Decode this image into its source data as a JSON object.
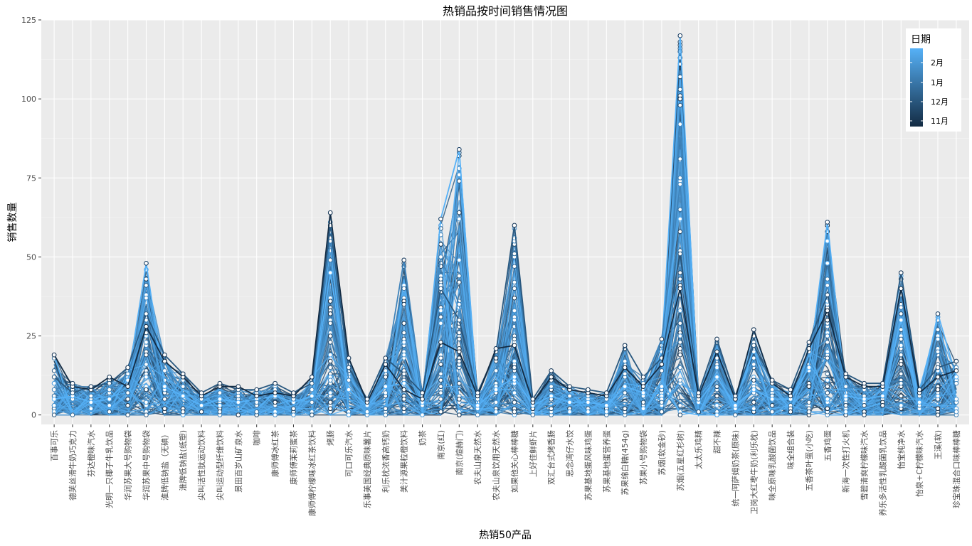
{
  "chart_data": {
    "type": "line",
    "title": "热销品按时间销售情况图",
    "xlabel": "热销50产品",
    "ylabel": "销售数量",
    "ylim": [
      -3,
      125
    ],
    "yticks": [
      0,
      25,
      50,
      75,
      100,
      125
    ],
    "grid": true,
    "legend": {
      "title": "日期",
      "placement": "top-right",
      "labels": [
        "2月",
        "1月",
        "12月",
        "11月"
      ],
      "color_low": "#132B43",
      "color_high": "#56B1F7"
    },
    "categories": [
      "百事可乐",
      "德芙丝滑牛奶巧克力",
      "芬达橙味汽水",
      "光明一只椰子牛乳饮品",
      "华润苏果大号购物袋",
      "华润苏果中号购物袋",
      "淮牌低钠盐（无碘）",
      "淮牌低钠盐(纸塑)",
      "尖叫活性肽运动饮料",
      "尖叫运动型纤维饮料",
      "景田百岁山矿泉水",
      "咖啡",
      "康师傅冰红茶",
      "康师傅茉莉蜜茶",
      "康师傅柠檬味冰红茶饮料",
      "烤肠",
      "可口可乐汽水",
      "乐事美国经典原味薯片",
      "利乐枕浓香高钙奶",
      "美汁源果粒橙饮料",
      "奶茶",
      "南京(红)",
      "南京(煊赫门)",
      "农夫山泉天然水",
      "农夫山泉饮用天然水",
      "如果他关心棒棒糖",
      "上好佳鲜虾片",
      "双汇台式烤香肠",
      "思念湾仔水饺",
      "苏果基地蛋风味鸡蛋",
      "苏果基地蛋营养蛋",
      "苏果绵白糖(454g)",
      "苏果小号购物袋",
      "苏烟(软金砂)",
      "苏烟(五星红杉树)",
      "太太乐鸡精",
      "甜不辣",
      "统一阿萨姆奶茶(原味)",
      "卫岗大红枣牛奶(利乐枕)",
      "味全原味乳酸菌饮品",
      "味全组合装",
      "五香茶叶蛋(小吃)",
      "五香鸡蛋",
      "新海一次性打火机",
      "雪碧清爽柠檬味汽水",
      "养乐多活性乳酸菌乳饮品",
      "怡宝纯净水",
      "怡泉+C柠檬味汽水",
      "王溪(软)",
      "珍宝珠混合口味棒棒糖"
    ],
    "peaks": [
      19,
      10,
      9,
      12,
      15,
      48,
      19,
      13,
      7,
      10,
      9,
      8,
      10,
      7,
      12,
      64,
      18,
      5,
      18,
      49,
      7,
      62,
      84,
      7,
      21,
      60,
      5,
      14,
      9,
      8,
      7,
      22,
      12,
      24,
      120,
      7,
      24,
      6,
      27,
      11,
      8,
      23,
      61,
      13,
      10,
      10,
      45,
      8,
      32,
      17
    ],
    "series": [
      {
        "name": "2月",
        "values": [
          5,
          6,
          4,
          5,
          11,
          48,
          9,
          6,
          3,
          5,
          4,
          5,
          6,
          4,
          6,
          45,
          8,
          3,
          9,
          10,
          4,
          62,
          84,
          3,
          8,
          12,
          3,
          6,
          4,
          4,
          3,
          9,
          7,
          20,
          120,
          4,
          12,
          3,
          8,
          5,
          5,
          15,
          61,
          6,
          5,
          6,
          30,
          4,
          32,
          12
        ]
      },
      {
        "name": "1月",
        "values": [
          8,
          10,
          6,
          8,
          13,
          30,
          14,
          9,
          5,
          7,
          6,
          4,
          8,
          5,
          8,
          55,
          11,
          4,
          14,
          49,
          6,
          50,
          35,
          5,
          14,
          30,
          4,
          9,
          6,
          6,
          5,
          17,
          10,
          24,
          73,
          5,
          18,
          5,
          16,
          8,
          7,
          20,
          41,
          9,
          8,
          8,
          38,
          6,
          20,
          15
        ]
      },
      {
        "name": "12月",
        "values": [
          12,
          7,
          9,
          10,
          15,
          32,
          19,
          13,
          7,
          10,
          8,
          8,
          10,
          7,
          10,
          60,
          15,
          5,
          18,
          13,
          7,
          40,
          30,
          7,
          20,
          60,
          5,
          14,
          9,
          8,
          7,
          22,
          12,
          18,
          51,
          7,
          24,
          6,
          22,
          11,
          8,
          23,
          38,
          13,
          10,
          10,
          45,
          8,
          15,
          17
        ]
      },
      {
        "name": "11月",
        "values": [
          19,
          9,
          8,
          12,
          9,
          28,
          17,
          12,
          6,
          9,
          9,
          6,
          7,
          6,
          12,
          64,
          18,
          4,
          16,
          8,
          5,
          23,
          20,
          6,
          21,
          22,
          4,
          12,
          8,
          7,
          6,
          15,
          9,
          16,
          40,
          6,
          20,
          5,
          27,
          10,
          6,
          21,
          33,
          12,
          9,
          9,
          40,
          7,
          12,
          14
        ]
      }
    ]
  }
}
